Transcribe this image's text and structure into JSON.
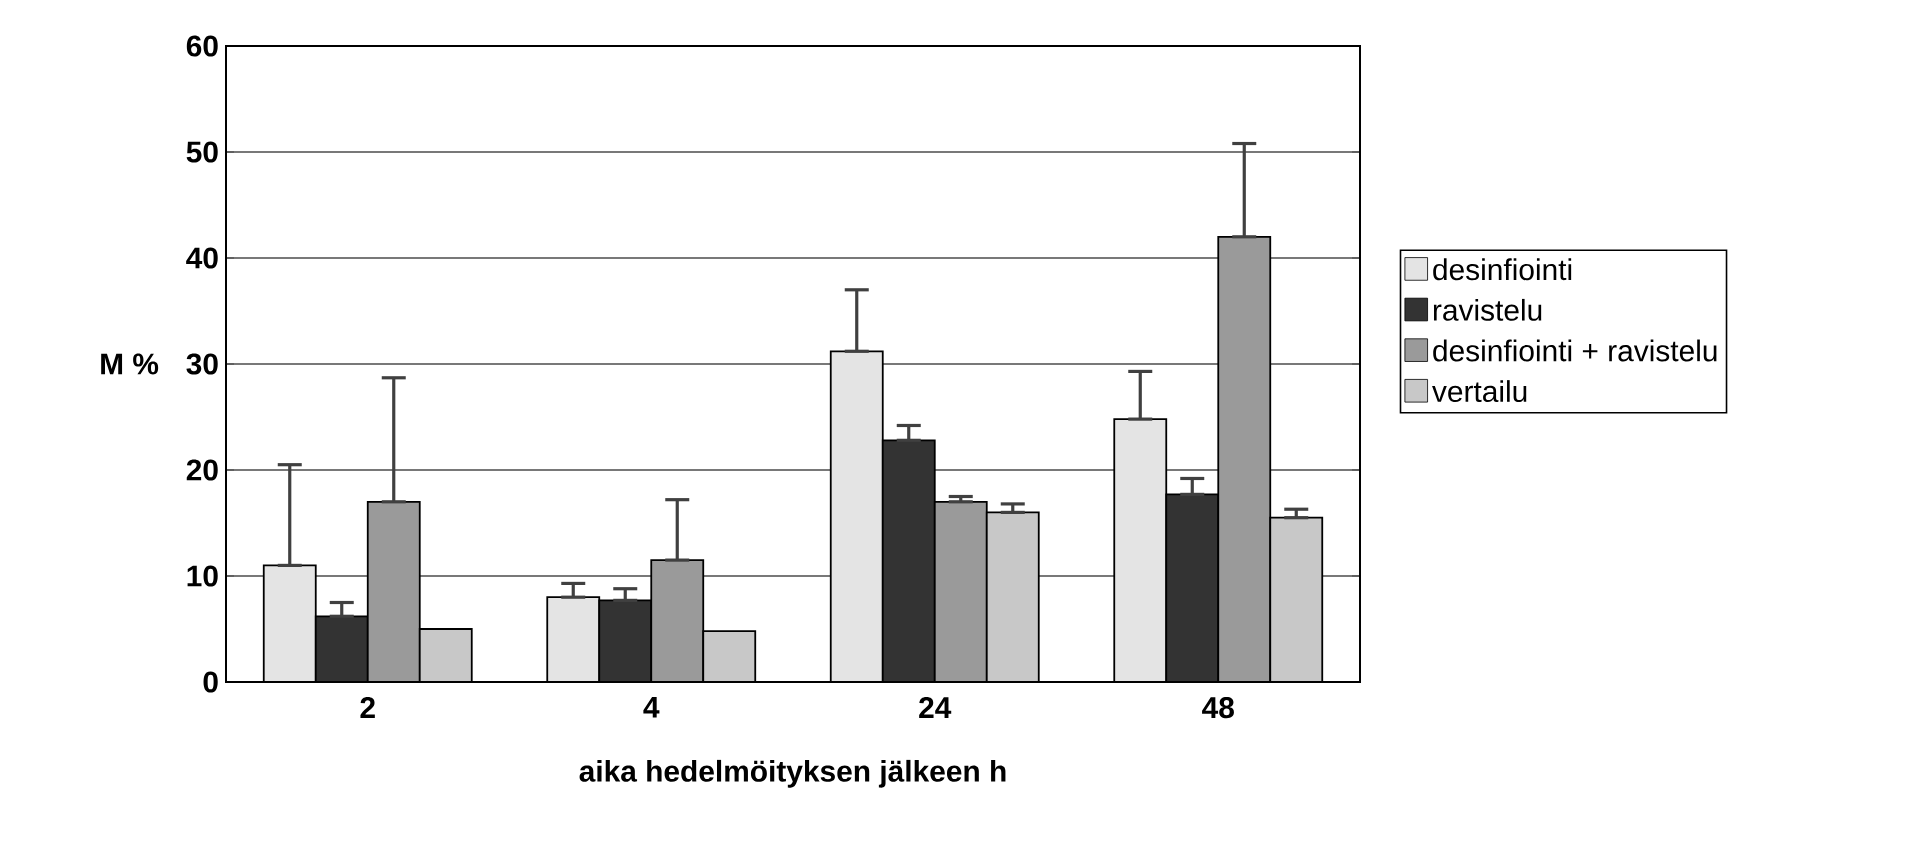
{
  "chart_data": {
    "type": "bar",
    "xlabel": "aika hedelmöityksen jälkeen h",
    "ylabel": "M %",
    "categories": [
      "2",
      "4",
      "24",
      "48"
    ],
    "ylim": [
      0,
      60
    ],
    "yticks": [
      0,
      10,
      20,
      30,
      40,
      50,
      60
    ],
    "grid": "y",
    "legend": "right",
    "series": [
      {
        "name": "desinfiointi",
        "color": "#e4e4e4",
        "values": [
          11,
          8,
          31.2,
          24.8
        ],
        "errors": [
          [
            11,
            20.5
          ],
          [
            8,
            9.3
          ],
          [
            31.2,
            37
          ],
          [
            24.8,
            29.3
          ]
        ]
      },
      {
        "name": "ravistelu",
        "color": "#333333",
        "values": [
          6.2,
          7.7,
          22.8,
          17.7
        ],
        "errors": [
          [
            6.2,
            7.5
          ],
          [
            7.7,
            8.8
          ],
          [
            22.8,
            24.2
          ],
          [
            17.7,
            19.2
          ]
        ]
      },
      {
        "name": "desinfiointi + ravistelu",
        "color": "#9a9a9a",
        "values": [
          17,
          11.5,
          17,
          42
        ],
        "errors": [
          [
            17,
            28.7
          ],
          [
            11.5,
            17.2
          ],
          [
            17,
            17.5
          ],
          [
            42,
            50.8
          ]
        ]
      },
      {
        "name": "vertailu",
        "color": "#c8c8c8",
        "values": [
          5,
          4.8,
          16,
          15.5
        ],
        "errors": [
          null,
          null,
          [
            16,
            16.8
          ],
          [
            15.5,
            16.3
          ]
        ]
      }
    ]
  }
}
